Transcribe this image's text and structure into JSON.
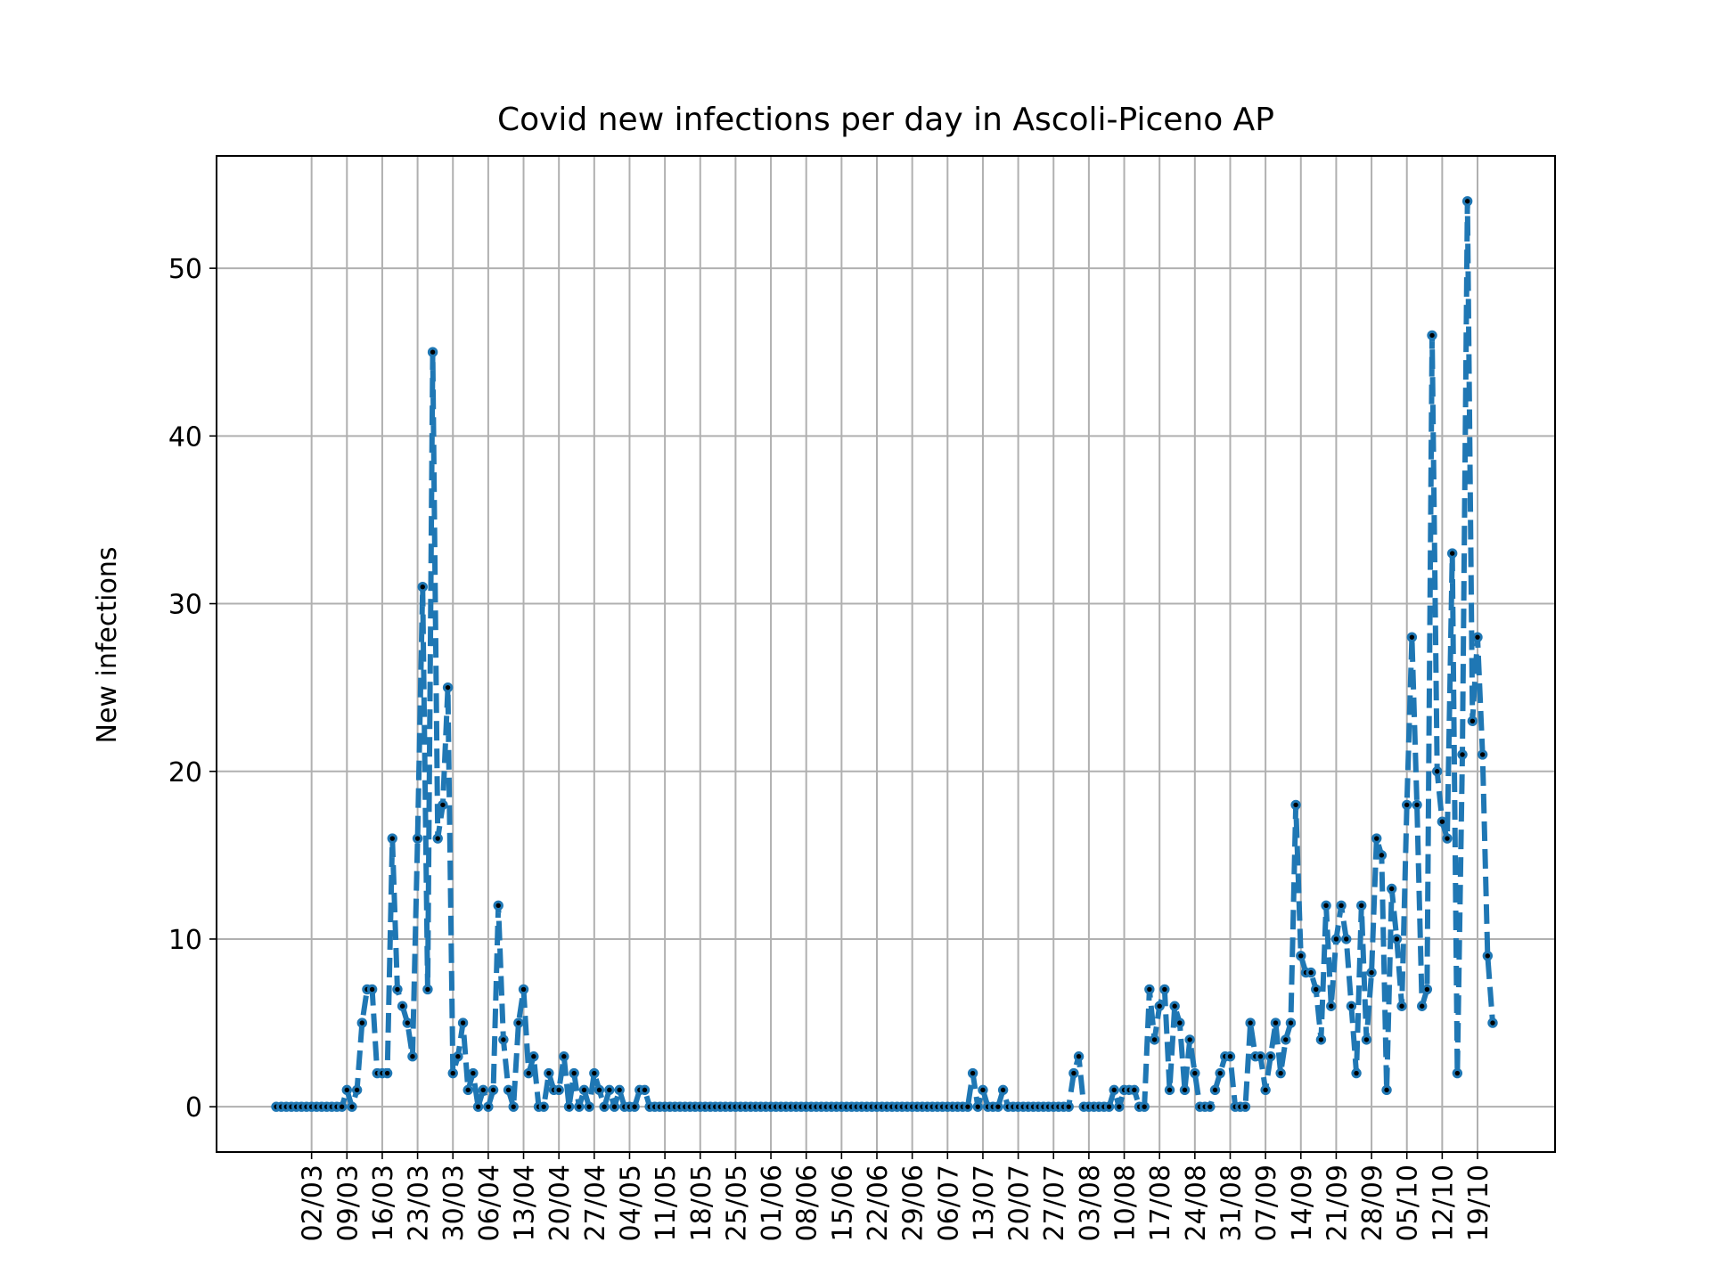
{
  "chart_data": {
    "type": "line",
    "title": "Covid new infections per day in Ascoli-Piceno AP",
    "xlabel": "",
    "ylabel": "New infections",
    "x_start": "24/02",
    "x_end": "21/10",
    "xticks": [
      "02/03",
      "09/03",
      "16/03",
      "23/03",
      "30/03",
      "06/04",
      "13/04",
      "20/04",
      "27/04",
      "04/05",
      "11/05",
      "18/05",
      "25/05",
      "01/06",
      "08/06",
      "15/06",
      "22/06",
      "29/06",
      "06/07",
      "13/07",
      "20/07",
      "27/07",
      "03/08",
      "10/08",
      "17/08",
      "24/08",
      "31/08",
      "07/09",
      "14/09",
      "21/09",
      "28/09",
      "05/10",
      "12/10",
      "19/10"
    ],
    "yticks": [
      0,
      10,
      20,
      30,
      40,
      50
    ],
    "ylim": [
      -2.7,
      56.7
    ],
    "grid": true,
    "series": [
      {
        "name": "",
        "color": "#1f77b4",
        "values": [
          0,
          0,
          0,
          0,
          0,
          0,
          0,
          0,
          0,
          0,
          0,
          0,
          0,
          0,
          1,
          0,
          1,
          5,
          7,
          7,
          2,
          2,
          2,
          16,
          7,
          6,
          5,
          3,
          16,
          31,
          7,
          45,
          16,
          18,
          25,
          2,
          3,
          5,
          1,
          2,
          0,
          1,
          0,
          1,
          12,
          4,
          1,
          0,
          5,
          7,
          2,
          3,
          0,
          0,
          2,
          1,
          1,
          3,
          0,
          2,
          0,
          1,
          0,
          2,
          1,
          0,
          1,
          0,
          1,
          0,
          0,
          0,
          1,
          1,
          0,
          0,
          0,
          0,
          0,
          0,
          0,
          0,
          0,
          0,
          0,
          0,
          0,
          0,
          0,
          0,
          0,
          0,
          0,
          0,
          0,
          0,
          0,
          0,
          0,
          0,
          0,
          0,
          0,
          0,
          0,
          0,
          0,
          0,
          0,
          0,
          0,
          0,
          0,
          0,
          0,
          0,
          0,
          0,
          0,
          0,
          0,
          0,
          0,
          0,
          0,
          0,
          0,
          0,
          0,
          0,
          0,
          0,
          0,
          0,
          0,
          0,
          0,
          0,
          2,
          0,
          1,
          0,
          0,
          0,
          1,
          0,
          0,
          0,
          0,
          0,
          0,
          0,
          0,
          0,
          0,
          0,
          0,
          0,
          2,
          3,
          0,
          0,
          0,
          0,
          0,
          0,
          1,
          0,
          1,
          1,
          1,
          0,
          0,
          7,
          4,
          6,
          7,
          1,
          6,
          5,
          1,
          4,
          2,
          0,
          0,
          0,
          1,
          2,
          3,
          3,
          0,
          0,
          0,
          5,
          3,
          3,
          1,
          3,
          5,
          2,
          4,
          5,
          18,
          9,
          8,
          8,
          7,
          4,
          12,
          6,
          10,
          12,
          10,
          6,
          2,
          12,
          4,
          8,
          16,
          15,
          1,
          13,
          10,
          6,
          18,
          28,
          18,
          6,
          7,
          46,
          20,
          17,
          16,
          33,
          2,
          21,
          54,
          23,
          28,
          21,
          9,
          5
        ]
      }
    ]
  }
}
